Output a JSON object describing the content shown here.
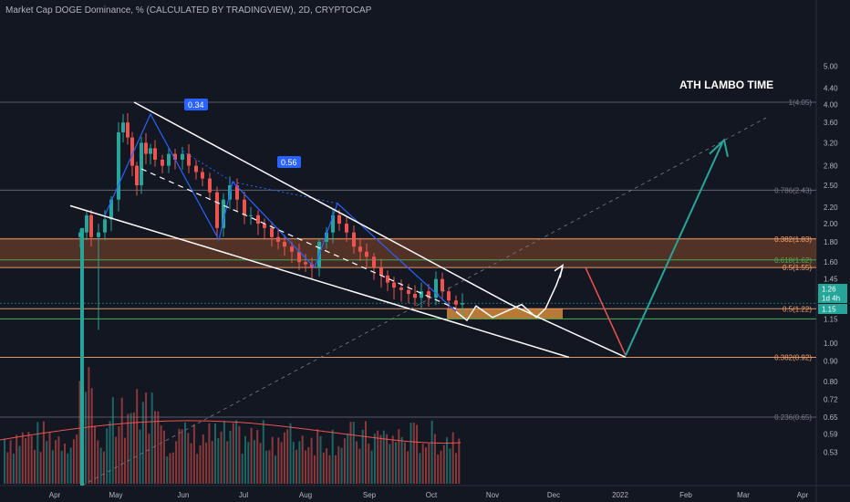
{
  "header": {
    "title": "Market Cap DOGE Dominance, % (CALCULATED BY TRADINGVIEW), 2D, CRYPTOCAP"
  },
  "chart_data": {
    "type": "candlestick",
    "y_scale": "log",
    "ylim": [
      0.5,
      5.0
    ],
    "y_ticks": [
      "5.00",
      "4.40",
      "4.00",
      "3.60",
      "3.20",
      "2.80",
      "2.50",
      "2.20",
      "2.00",
      "1.80",
      "1.60",
      "1.45",
      "1.30",
      "1.15",
      "1.00",
      "0.90",
      "0.80",
      "0.72",
      "0.65",
      "0.59",
      "0.53"
    ],
    "x_ticks": [
      "Apr",
      "May",
      "Jun",
      "Jul",
      "Aug",
      "Sep",
      "Oct",
      "Nov",
      "Dec",
      "2022",
      "Feb",
      "Mar",
      "Apr"
    ],
    "price_labels": [
      {
        "text": "1.26",
        "color": "#26a69a"
      },
      {
        "text": "1d 4h",
        "color": "#26a69a"
      },
      {
        "text": "1.15",
        "color": "#26a69a"
      }
    ],
    "fib_levels": [
      {
        "label": "1(4.05)",
        "value": 4.05,
        "color": "#787b86"
      },
      {
        "label": "0.786(2.43)",
        "value": 2.43,
        "color": "#787b86"
      },
      {
        "label": "0.382(1.83)",
        "value": 1.83,
        "color": "#f7a26a"
      },
      {
        "label": "0.618(1.62)",
        "value": 1.62,
        "color": "#4caf50"
      },
      {
        "label": "0.5(1.55)",
        "value": 1.55,
        "color": "#f7a26a"
      },
      {
        "label": "0.5(1.22)",
        "value": 1.22,
        "color": "#f7a26a"
      },
      {
        "label": "0.382(0.92)",
        "value": 0.92,
        "color": "#f7a26a"
      },
      {
        "label": "0.236(0.65)",
        "value": 0.65,
        "color": "#787b86"
      }
    ],
    "annotations": [
      {
        "text": "ATH LAMBO TIME",
        "color": "#ffffff"
      },
      {
        "text": "0.34",
        "color": "#2962ff"
      },
      {
        "text": "0.56",
        "color": "#2962ff"
      }
    ],
    "colors": {
      "up": "#26a69a",
      "down": "#ef5350",
      "background": "#131722"
    }
  }
}
